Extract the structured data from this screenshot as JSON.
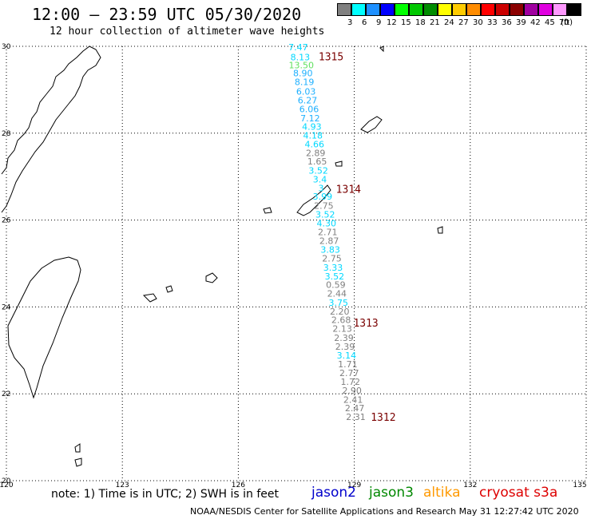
{
  "header": {
    "title": "12:00 – 23:59 UTC 05/30/2020",
    "subtitle": "12 hour collection of altimeter wave heights"
  },
  "legend": {
    "unit": "(ft)",
    "items": [
      {
        "label": "3",
        "color": "#808080"
      },
      {
        "label": "6",
        "color": "#00ffff"
      },
      {
        "label": "9",
        "color": "#1e90ff"
      },
      {
        "label": "12",
        "color": "#0000ff"
      },
      {
        "label": "15",
        "color": "#00ff00"
      },
      {
        "label": "18",
        "color": "#00c800"
      },
      {
        "label": "21",
        "color": "#008c00"
      },
      {
        "label": "24",
        "color": "#ffff00"
      },
      {
        "label": "27",
        "color": "#ffcc00"
      },
      {
        "label": "30",
        "color": "#ff8c00"
      },
      {
        "label": "33",
        "color": "#ff0000"
      },
      {
        "label": "36",
        "color": "#cc0000"
      },
      {
        "label": "39",
        "color": "#8b0000"
      },
      {
        "label": "42",
        "color": "#a000a0"
      },
      {
        "label": "45",
        "color": "#e000e0"
      },
      {
        "label": "70",
        "color": "#ff99ff"
      },
      {
        "label": "",
        "color": "#000000"
      }
    ]
  },
  "map": {
    "lon_min": 120,
    "lon_max": 135,
    "lat_min": 20,
    "lat_max": 30,
    "lon_ticks": [
      "120",
      "123",
      "126",
      "129",
      "132",
      "135"
    ],
    "lat_ticks": [
      "30",
      "28",
      "26",
      "24",
      "22",
      "20"
    ],
    "observations": [
      {
        "lat": 29.98,
        "lon": 127.55,
        "value": "7.47",
        "color": "#00d8ff"
      },
      {
        "lat": 29.75,
        "lon": 127.6,
        "value": "8.13",
        "color": "#00d8ff"
      },
      {
        "lat": 29.57,
        "lon": 127.63,
        "value": "13.50",
        "color": "#60e060"
      },
      {
        "lat": 29.38,
        "lon": 127.67,
        "value": "8.90",
        "color": "#1eb0ff"
      },
      {
        "lat": 29.18,
        "lon": 127.71,
        "value": "8.19",
        "color": "#1eb0ff"
      },
      {
        "lat": 28.96,
        "lon": 127.75,
        "value": "6.03",
        "color": "#1eb0ff"
      },
      {
        "lat": 28.76,
        "lon": 127.79,
        "value": "6.27",
        "color": "#1eb0ff"
      },
      {
        "lat": 28.56,
        "lon": 127.83,
        "value": "6.06",
        "color": "#1eb0ff"
      },
      {
        "lat": 28.35,
        "lon": 127.86,
        "value": "7.12",
        "color": "#1eb0ff"
      },
      {
        "lat": 28.15,
        "lon": 127.9,
        "value": "4.93",
        "color": "#00d8ff"
      },
      {
        "lat": 27.95,
        "lon": 127.93,
        "value": "4.18",
        "color": "#00d8ff"
      },
      {
        "lat": 27.75,
        "lon": 127.97,
        "value": "4.66",
        "color": "#00d8ff"
      },
      {
        "lat": 27.55,
        "lon": 128.0,
        "value": "2.89",
        "color": "#808080"
      },
      {
        "lat": 27.35,
        "lon": 128.04,
        "value": "1.65",
        "color": "#808080"
      },
      {
        "lat": 27.14,
        "lon": 128.07,
        "value": "3.52",
        "color": "#00d8ff"
      },
      {
        "lat": 26.94,
        "lon": 128.11,
        "value": "3.4",
        "color": "#00d8ff"
      },
      {
        "lat": 26.74,
        "lon": 128.14,
        "value": "3",
        "color": "#00d8ff"
      },
      {
        "lat": 26.54,
        "lon": 128.18,
        "value": "3.99",
        "color": "#00d8ff"
      },
      {
        "lat": 26.33,
        "lon": 128.21,
        "value": "2.75",
        "color": "#808080"
      },
      {
        "lat": 26.13,
        "lon": 128.25,
        "value": "3.52",
        "color": "#00d8ff"
      },
      {
        "lat": 25.93,
        "lon": 128.28,
        "value": "4.30",
        "color": "#00d8ff"
      },
      {
        "lat": 25.73,
        "lon": 128.31,
        "value": "2.71",
        "color": "#808080"
      },
      {
        "lat": 25.52,
        "lon": 128.35,
        "value": "2.87",
        "color": "#808080"
      },
      {
        "lat": 25.32,
        "lon": 128.38,
        "value": "3.83",
        "color": "#00d8ff"
      },
      {
        "lat": 25.12,
        "lon": 128.42,
        "value": "2.75",
        "color": "#808080"
      },
      {
        "lat": 24.91,
        "lon": 128.45,
        "value": "3.33",
        "color": "#00d8ff"
      },
      {
        "lat": 24.71,
        "lon": 128.49,
        "value": "3.52",
        "color": "#00d8ff"
      },
      {
        "lat": 24.51,
        "lon": 128.52,
        "value": "0.59",
        "color": "#808080"
      },
      {
        "lat": 24.31,
        "lon": 128.55,
        "value": "2.44",
        "color": "#808080"
      },
      {
        "lat": 24.1,
        "lon": 128.59,
        "value": "3.75",
        "color": "#00d8ff"
      },
      {
        "lat": 23.9,
        "lon": 128.62,
        "value": "2.20",
        "color": "#808080"
      },
      {
        "lat": 23.7,
        "lon": 128.66,
        "value": "2.68",
        "color": "#808080"
      },
      {
        "lat": 23.5,
        "lon": 128.69,
        "value": "2.13",
        "color": "#808080"
      },
      {
        "lat": 23.29,
        "lon": 128.73,
        "value": "2.39",
        "color": "#808080"
      },
      {
        "lat": 23.09,
        "lon": 128.76,
        "value": "2.39",
        "color": "#808080"
      },
      {
        "lat": 22.89,
        "lon": 128.8,
        "value": "3.14",
        "color": "#00d8ff"
      },
      {
        "lat": 22.68,
        "lon": 128.83,
        "value": "1.71",
        "color": "#808080"
      },
      {
        "lat": 22.48,
        "lon": 128.87,
        "value": "2.77",
        "color": "#808080"
      },
      {
        "lat": 22.28,
        "lon": 128.9,
        "value": "1.72",
        "color": "#808080"
      },
      {
        "lat": 22.08,
        "lon": 128.94,
        "value": "2.90",
        "color": "#808080"
      },
      {
        "lat": 21.87,
        "lon": 128.97,
        "value": "2.41",
        "color": "#808080"
      },
      {
        "lat": 21.67,
        "lon": 129.01,
        "value": "2.47",
        "color": "#808080"
      },
      {
        "lat": 21.47,
        "lon": 129.04,
        "value": "2.31",
        "color": "#808080"
      }
    ],
    "revolutions": [
      {
        "label": "1315",
        "lat": 29.75,
        "lon": 128.4
      },
      {
        "label": "1314",
        "lat": 26.7,
        "lon": 128.85
      },
      {
        "label": "1313",
        "lat": 23.62,
        "lon": 129.3
      },
      {
        "label": "1312",
        "lat": 21.45,
        "lon": 129.75
      }
    ]
  },
  "note": "note: 1) Time is in UTC; 2) SWH is in feet",
  "missions": [
    {
      "label": "jason2",
      "color": "#0000cc"
    },
    {
      "label": "jason3",
      "color": "#008800"
    },
    {
      "label": "altika",
      "color": "#ff9900"
    },
    {
      "label": "cryosat s3a",
      "color": "#dd0000"
    }
  ],
  "footer": "NOAA/NESDIS Center for Satellite Applications and Research   May 31 12:27:42 UTC 2020"
}
